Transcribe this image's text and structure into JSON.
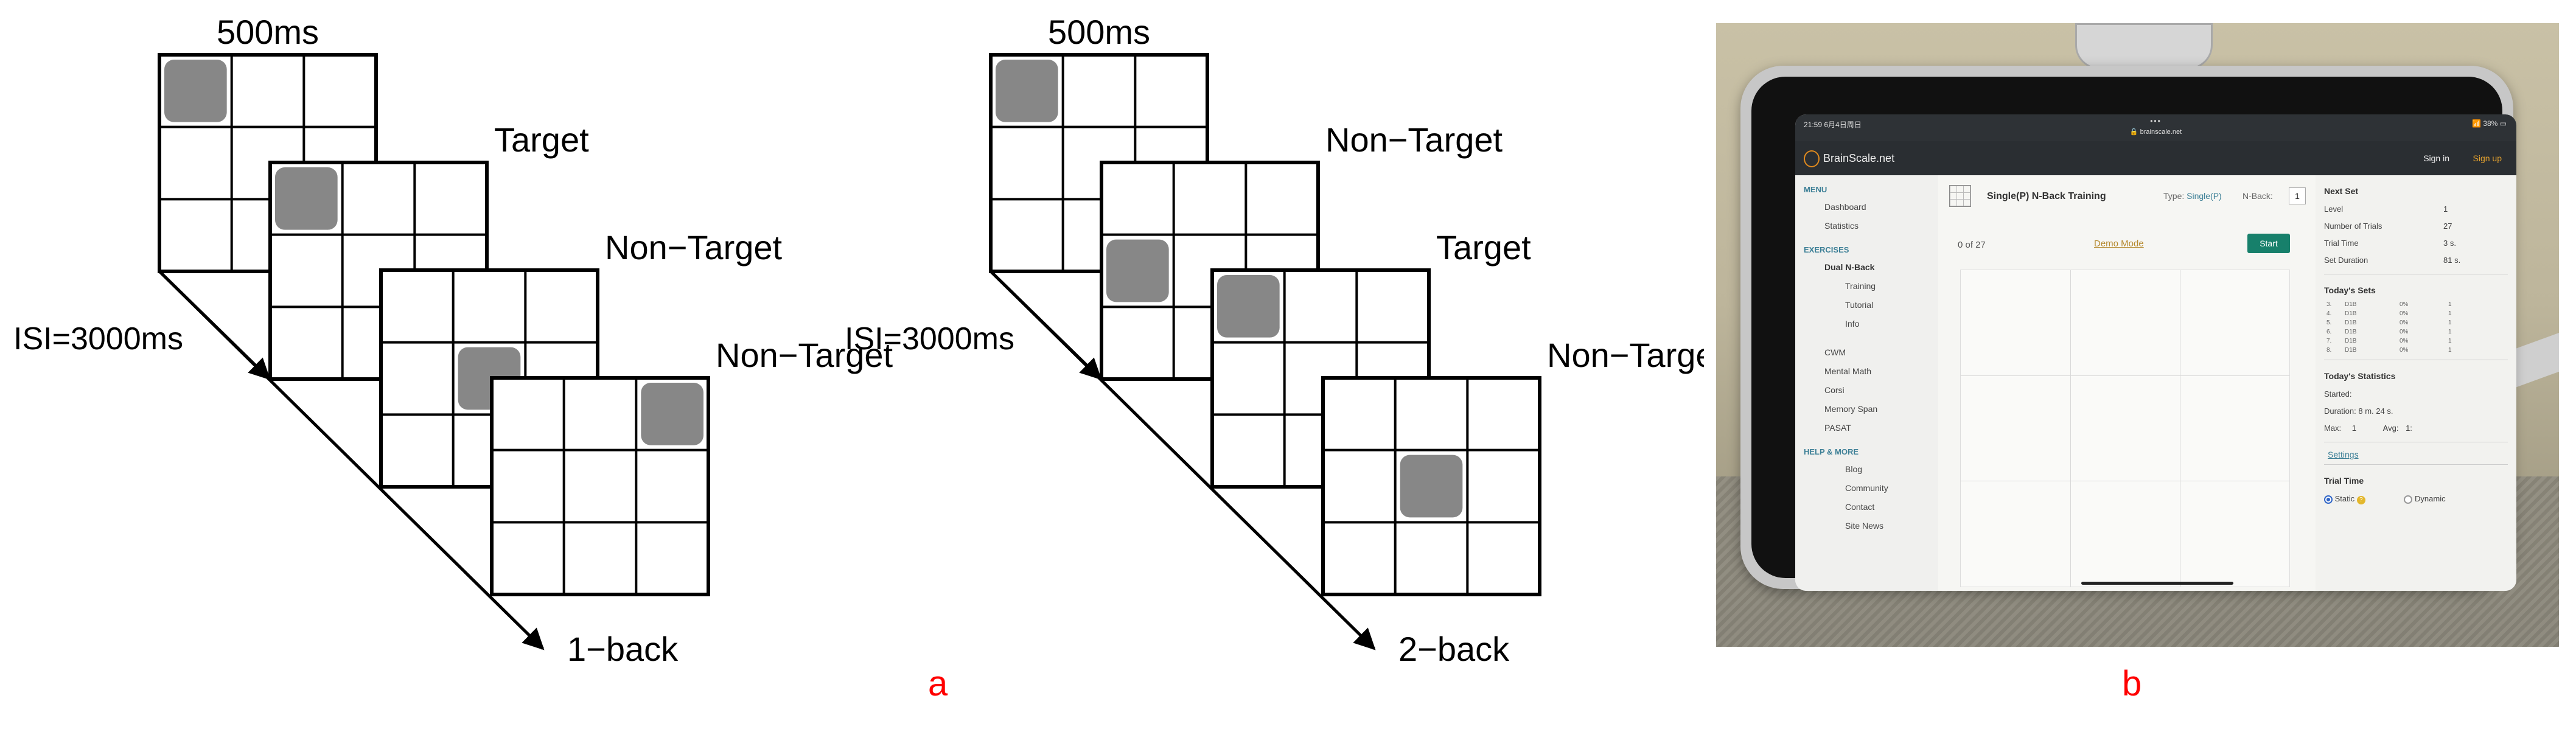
{
  "panel_a": {
    "diagrams": [
      {
        "duration_label": "500ms",
        "isi_label": "ISI=3000ms",
        "end_label": "1−back",
        "frames": [
          {
            "label": "",
            "active_cell": [
              0,
              0
            ]
          },
          {
            "label": "Target",
            "active_cell": [
              0,
              0
            ]
          },
          {
            "label": "Non−Target",
            "active_cell": [
              1,
              1
            ]
          },
          {
            "label": "Non−Target",
            "active_cell": [
              0,
              2
            ]
          }
        ]
      },
      {
        "duration_label": "500ms",
        "isi_label": "ISI=3000ms",
        "end_label": "2−back",
        "frames": [
          {
            "label": "",
            "active_cell": [
              0,
              0
            ]
          },
          {
            "label": "Non−Target",
            "active_cell": [
              1,
              0
            ]
          },
          {
            "label": "Target",
            "active_cell": [
              0,
              0
            ]
          },
          {
            "label": "Non−Target",
            "active_cell": [
              1,
              1
            ]
          }
        ]
      }
    ],
    "caption": "a"
  },
  "panel_b": {
    "caption": "b",
    "status": {
      "time": "21:59  6月4日周日",
      "dots": "•••",
      "url": "🔒 brainscale.net",
      "battery": "📶 38% ▭"
    },
    "header": {
      "brand": "BrainScale.net",
      "signin": "Sign in",
      "signup": "Sign up"
    },
    "sidebar": {
      "sections": [
        {
          "title": "MENU",
          "items": [
            {
              "label": "Dashboard",
              "level": "item"
            },
            {
              "label": "Statistics",
              "level": "item"
            }
          ]
        },
        {
          "title": "EXERCISES",
          "items": [
            {
              "label": "Dual N-Back",
              "level": "strong"
            },
            {
              "label": "Training",
              "level": "sub"
            },
            {
              "label": "Tutorial",
              "level": "sub"
            },
            {
              "label": "Info",
              "level": "sub"
            },
            {
              "label": "",
              "level": "gap"
            },
            {
              "label": "CWM",
              "level": "item"
            },
            {
              "label": "Mental Math",
              "level": "item"
            },
            {
              "label": "Corsi",
              "level": "item"
            },
            {
              "label": "Memory Span",
              "level": "item"
            },
            {
              "label": "PASAT",
              "level": "item"
            }
          ]
        },
        {
          "title": "HELP & MORE",
          "items": [
            {
              "label": "Blog",
              "level": "sub"
            },
            {
              "label": "Community",
              "level": "sub"
            },
            {
              "label": "Contact",
              "level": "sub"
            },
            {
              "label": "Site News",
              "level": "sub"
            }
          ]
        }
      ]
    },
    "main": {
      "title": "Single(P) N-Back Training",
      "type_label": "Type:",
      "type_value": "Single(P)",
      "nback_label": "N-Back:",
      "nback_value": "1",
      "progress": "0 of 27",
      "demo_link": "Demo Mode",
      "start_button": "Start"
    },
    "next_set": {
      "title": "Next Set",
      "rows": [
        {
          "label": "Level",
          "value": "1"
        },
        {
          "label": "Number of Trials",
          "value": "27"
        },
        {
          "label": "Trial Time",
          "value": "3 s."
        },
        {
          "label": "Set Duration",
          "value": "81 s."
        }
      ]
    },
    "todays_sets": {
      "title": "Today's Sets",
      "rows": [
        {
          "n": "3.",
          "name": "D1B",
          "pct": "0%",
          "lvl": "1"
        },
        {
          "n": "4.",
          "name": "D1B",
          "pct": "0%",
          "lvl": "1"
        },
        {
          "n": "5.",
          "name": "D1B",
          "pct": "0%",
          "lvl": "1"
        },
        {
          "n": "6.",
          "name": "D1B",
          "pct": "0%",
          "lvl": "1"
        },
        {
          "n": "7.",
          "name": "D1B",
          "pct": "0%",
          "lvl": "1"
        },
        {
          "n": "8.",
          "name": "D1B",
          "pct": "0%",
          "lvl": "1"
        }
      ]
    },
    "todays_stats": {
      "title": "Today's Statistics",
      "started": "Started:",
      "duration_label": "Duration:",
      "duration_value": "8 m. 24 s.",
      "max_label": "Max:",
      "max_value": "1",
      "avg_label": "Avg:",
      "avg_value": "1:"
    },
    "settings_link": "Settings",
    "trial_time": {
      "title": "Trial Time",
      "static": "Static",
      "dynamic": "Dynamic",
      "help": "?"
    }
  },
  "colors": {
    "caption": "#ff0000",
    "square": "#878787",
    "grid": "#000000"
  }
}
